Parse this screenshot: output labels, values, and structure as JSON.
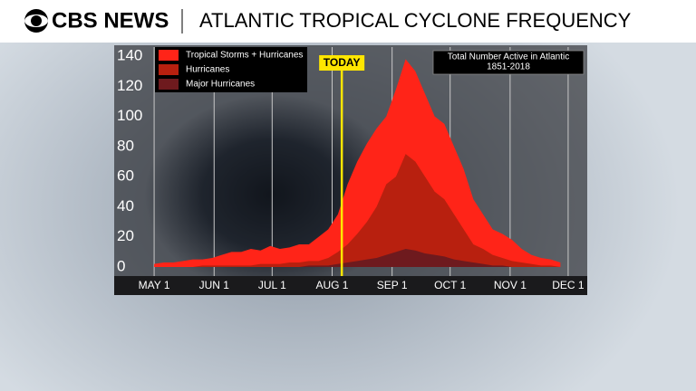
{
  "header": {
    "brand": "CBS NEWS",
    "title": "ATLANTIC TROPICAL CYCLONE FREQUENCY"
  },
  "chart_data": {
    "type": "area",
    "x": [
      0,
      5,
      10,
      15,
      20,
      25,
      30,
      35,
      40,
      45,
      50,
      55,
      60,
      65,
      70,
      75,
      80,
      85,
      90,
      95,
      100,
      105,
      110,
      115,
      120,
      125,
      130,
      135,
      140,
      145,
      150,
      155,
      160,
      165,
      170,
      175,
      180,
      185,
      190,
      195,
      200,
      205,
      210
    ],
    "series": [
      {
        "name": "Tropical Storms + Hurricanes",
        "color": "#ff2418",
        "values": [
          2,
          3,
          3,
          4,
          5,
          5,
          6,
          8,
          10,
          10,
          12,
          11,
          14,
          12,
          13,
          15,
          15,
          20,
          25,
          35,
          55,
          70,
          82,
          92,
          100,
          118,
          138,
          130,
          115,
          100,
          95,
          80,
          65,
          45,
          35,
          25,
          22,
          18,
          12,
          8,
          6,
          5,
          3
        ]
      },
      {
        "name": "Hurricanes",
        "color": "#b8200f",
        "values": [
          0,
          0,
          0,
          0,
          0,
          1,
          1,
          1,
          1,
          1,
          1,
          2,
          2,
          2,
          3,
          3,
          4,
          4,
          6,
          10,
          15,
          22,
          30,
          40,
          55,
          60,
          75,
          70,
          60,
          50,
          45,
          35,
          25,
          15,
          12,
          8,
          6,
          4,
          3,
          2,
          1,
          1,
          0
        ]
      },
      {
        "name": "Major Hurricanes",
        "color": "#6e1a1e",
        "values": [
          0,
          0,
          0,
          0,
          0,
          0,
          0,
          0,
          0,
          0,
          0,
          0,
          0,
          0,
          0,
          0,
          1,
          1,
          1,
          2,
          3,
          4,
          5,
          6,
          8,
          10,
          12,
          11,
          9,
          8,
          7,
          5,
          4,
          3,
          2,
          1,
          1,
          0,
          0,
          0,
          0,
          0,
          0
        ]
      }
    ],
    "xlim": [
      -8,
      222
    ],
    "xticks": [
      {
        "value": 0,
        "label": "MAY 1"
      },
      {
        "value": 31,
        "label": "JUN 1"
      },
      {
        "value": 61,
        "label": "JUL 1"
      },
      {
        "value": 92,
        "label": "AUG 1"
      },
      {
        "value": 123,
        "label": "SEP 1"
      },
      {
        "value": 153,
        "label": "OCT 1"
      },
      {
        "value": 184,
        "label": "NOV 1"
      },
      {
        "value": 214,
        "label": "DEC 1"
      }
    ],
    "ylim": [
      0,
      140
    ],
    "yticks": [
      0,
      20,
      40,
      60,
      80,
      100,
      120,
      140
    ],
    "grid": true,
    "marker": {
      "label": "TODAY",
      "x": 97,
      "color": "#ffe600"
    },
    "annotation": [
      "Total Number Active in Atlantic",
      "1851-2018"
    ],
    "legend": "top-left"
  }
}
